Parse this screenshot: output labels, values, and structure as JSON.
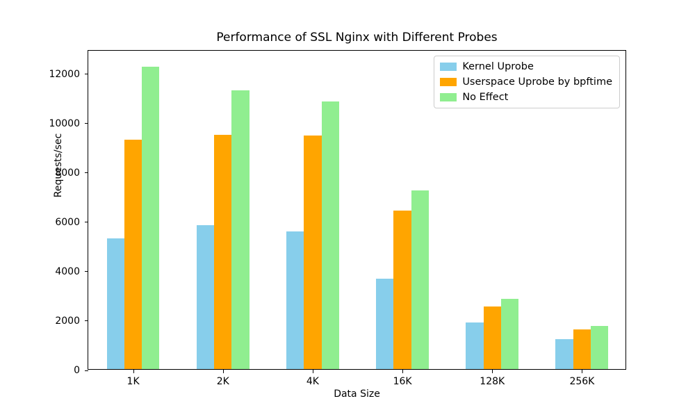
{
  "chart_data": {
    "type": "bar",
    "title": "Performance of SSL Nginx with Different Probes",
    "xlabel": "Data Size",
    "ylabel": "Requests/sec",
    "categories": [
      "1K",
      "2K",
      "4K",
      "16K",
      "128K",
      "256K"
    ],
    "series": [
      {
        "name": "Kernel Uprobe",
        "color": "#87CEEB",
        "values": [
          5320,
          5860,
          5600,
          3680,
          1900,
          1220
        ]
      },
      {
        "name": "Userspace Uprobe by bpftime",
        "color": "#FFA500",
        "values": [
          9330,
          9530,
          9490,
          6460,
          2540,
          1620
        ]
      },
      {
        "name": "No Effect",
        "color": "#90EE90",
        "values": [
          12300,
          11350,
          10900,
          7270,
          2850,
          1760
        ]
      }
    ],
    "yticks": [
      0,
      2000,
      4000,
      6000,
      8000,
      10000,
      12000
    ],
    "ylim": [
      0,
      12950
    ],
    "grid": false,
    "legend_position": "upper right",
    "background_color": "#ffffff",
    "axis_color": "#000000"
  }
}
